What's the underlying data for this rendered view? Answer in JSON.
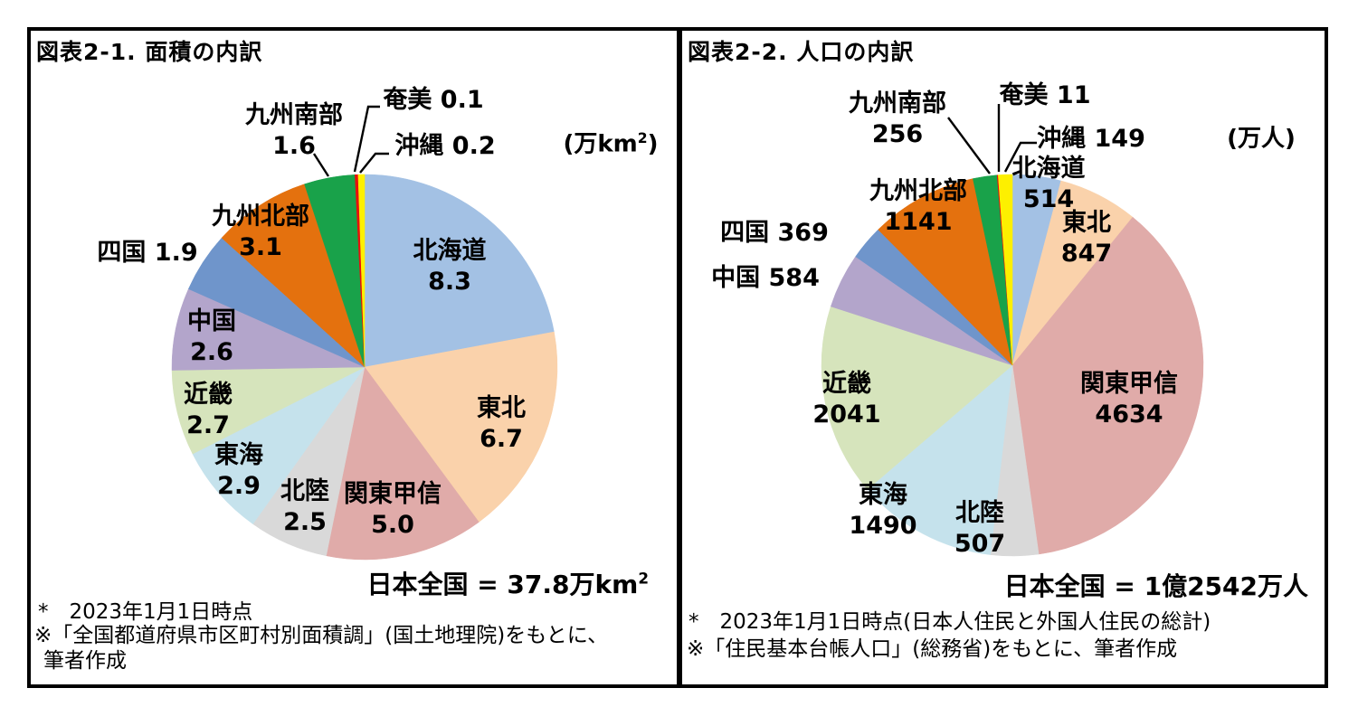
{
  "page": {
    "background": "#FFFFFF",
    "border_color": "#000000"
  },
  "panels": [
    {
      "title": "図表2-1. 面積の内訳",
      "unit_text": "(万km",
      "unit_sup": "2",
      "unit_close": ")",
      "total_text": "日本全国 = 37.8万km",
      "total_sup": "2",
      "total_close": "",
      "footnote_line1": "*　2023年1月1日時点",
      "footnote_line2": "※「全国都道府県市区町村別面積調」(国土地理院)をもとに、",
      "footnote_line3": "筆者作成"
    },
    {
      "title": "図表2-2. 人口の内訳",
      "unit_text": "(万人",
      "unit_sup": "",
      "unit_close": ")",
      "total_text": "日本全国 = 1億2542万人",
      "total_sup": "",
      "total_close": "",
      "footnote_line1": "*　2023年1月1日時点(日本人住民と外国人住民の総計)",
      "footnote_line2": "※「住民基本台帳人口」(総務省)をもとに、筆者作成",
      "footnote_line3": ""
    }
  ],
  "chart_data": [
    {
      "type": "pie",
      "title": "図表2-1. 面積の内訳",
      "unit": "万km2",
      "total_label": "日本全国 = 37.8万km2",
      "start_angle_deg": 0,
      "direction": "clockwise",
      "value_decimals": 1,
      "slices": [
        {
          "label": "北海道",
          "value": 8.3,
          "color": "#A3C1E4"
        },
        {
          "label": "東北",
          "value": 6.7,
          "color": "#FAD2AB"
        },
        {
          "label": "関東甲信",
          "value": 5.0,
          "color": "#E0ABA9"
        },
        {
          "label": "北陸",
          "value": 2.5,
          "color": "#D9D9D9"
        },
        {
          "label": "東海",
          "value": 2.9,
          "color": "#C5E2EC"
        },
        {
          "label": "近畿",
          "value": 2.7,
          "color": "#D6E4BC"
        },
        {
          "label": "中国",
          "value": 2.6,
          "color": "#B3A5CB"
        },
        {
          "label": "四国",
          "value": 1.9,
          "color": "#6F95CB"
        },
        {
          "label": "九州北部",
          "value": 3.1,
          "color": "#E4710E"
        },
        {
          "label": "九州南部",
          "value": 1.6,
          "color": "#19A24A"
        },
        {
          "label": "奄美",
          "value": 0.1,
          "color": "#E8100C"
        },
        {
          "label": "沖縄",
          "value": 0.2,
          "color": "#FDF000"
        }
      ]
    },
    {
      "type": "pie",
      "title": "図表2-2. 人口の内訳",
      "unit": "万人",
      "total_label": "日本全国 = 1億2542万人",
      "start_angle_deg": 0,
      "direction": "clockwise",
      "value_decimals": 0,
      "slices": [
        {
          "label": "北海道",
          "value": 514,
          "color": "#A3C1E4"
        },
        {
          "label": "東北",
          "value": 847,
          "color": "#FAD2AB"
        },
        {
          "label": "関東甲信",
          "value": 4634,
          "color": "#E0ABA9"
        },
        {
          "label": "北陸",
          "value": 507,
          "color": "#D9D9D9"
        },
        {
          "label": "東海",
          "value": 1490,
          "color": "#C5E2EC"
        },
        {
          "label": "近畿",
          "value": 2041,
          "color": "#D6E4BC"
        },
        {
          "label": "中国",
          "value": 584,
          "color": "#B3A5CB"
        },
        {
          "label": "四国",
          "value": 369,
          "color": "#6F95CB"
        },
        {
          "label": "九州北部",
          "value": 1141,
          "color": "#E4710E"
        },
        {
          "label": "九州南部",
          "value": 256,
          "color": "#19A24A"
        },
        {
          "label": "奄美",
          "value": 11,
          "color": "#E8100C"
        },
        {
          "label": "沖縄",
          "value": 149,
          "color": "#FDF000"
        }
      ]
    }
  ]
}
